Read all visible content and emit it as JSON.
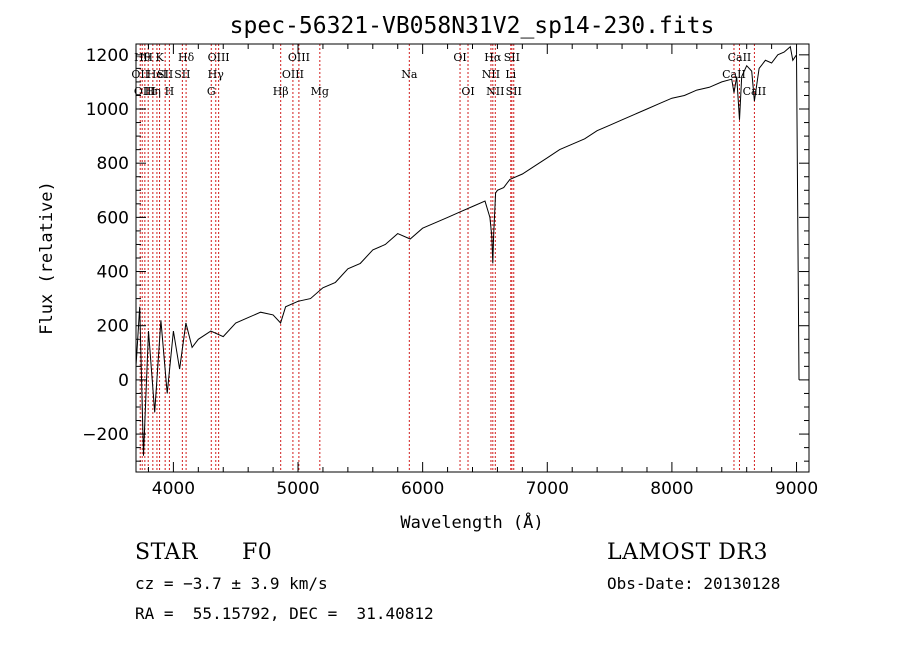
{
  "chart_data": {
    "type": "line",
    "title": "spec-56321-VB058N31V2_sp14-230.fits",
    "xlabel": "Wavelength (Å)",
    "ylabel": "Flux (relative)",
    "xlim": [
      3700,
      9100
    ],
    "ylim": [
      -340,
      1240
    ],
    "xticks": [
      4000,
      5000,
      6000,
      7000,
      8000,
      9000
    ],
    "yticks": [
      -200,
      0,
      200,
      400,
      600,
      800,
      1000,
      1200
    ],
    "grid": false,
    "series": [
      {
        "name": "spectrum",
        "x": [
          3700,
          3730,
          3760,
          3800,
          3850,
          3900,
          3950,
          4000,
          4050,
          4100,
          4150,
          4200,
          4300,
          4400,
          4500,
          4600,
          4700,
          4800,
          4860,
          4900,
          5000,
          5100,
          5200,
          5300,
          5400,
          5500,
          5600,
          5700,
          5800,
          5900,
          6000,
          6100,
          6200,
          6300,
          6400,
          6500,
          6540,
          6555,
          6563,
          6570,
          6585,
          6600,
          6650,
          6700,
          6800,
          6900,
          7000,
          7100,
          7200,
          7300,
          7400,
          7500,
          7600,
          7700,
          7800,
          7900,
          8000,
          8100,
          8200,
          8300,
          8400,
          8480,
          8498,
          8520,
          8542,
          8560,
          8600,
          8640,
          8662,
          8700,
          8750,
          8800,
          8850,
          8900,
          8950,
          8970,
          9000,
          9020
        ],
        "y": [
          50,
          270,
          -280,
          180,
          -120,
          220,
          -50,
          180,
          40,
          210,
          120,
          150,
          180,
          160,
          210,
          230,
          250,
          240,
          210,
          270,
          290,
          300,
          340,
          360,
          410,
          430,
          480,
          500,
          540,
          520,
          560,
          580,
          600,
          620,
          640,
          660,
          600,
          530,
          430,
          540,
          690,
          700,
          710,
          740,
          760,
          790,
          820,
          850,
          870,
          890,
          920,
          940,
          960,
          980,
          1000,
          1020,
          1040,
          1050,
          1070,
          1080,
          1100,
          1110,
          1060,
          1120,
          960,
          1120,
          1160,
          1140,
          1030,
          1150,
          1180,
          1170,
          1200,
          1210,
          1230,
          1180,
          1200,
          0
        ]
      }
    ],
    "lines": [
      {
        "x": 3734,
        "label": "OII",
        "row": 2
      },
      {
        "x": 3750,
        "label": "Hθ",
        "row": 1
      },
      {
        "x": 3771,
        "label": "OIII",
        "row": 3
      },
      {
        "x": 3798,
        "label": "H",
        "row": 1
      },
      {
        "x": 3835,
        "label": "Hη",
        "row": 3
      },
      {
        "x": 3868,
        "label": "HeI",
        "row": 2
      },
      {
        "x": 3889,
        "label": "K",
        "row": 1
      },
      {
        "x": 3934,
        "label": "SII",
        "row": 2
      },
      {
        "x": 3968,
        "label": "H",
        "row": 3
      },
      {
        "x": 4072,
        "label": "SII",
        "row": 2
      },
      {
        "x": 4102,
        "label": "Hδ",
        "row": 1
      },
      {
        "x": 4304,
        "label": "G",
        "row": 3
      },
      {
        "x": 4340,
        "label": "Hγ",
        "row": 2
      },
      {
        "x": 4363,
        "label": "OIII",
        "row": 1
      },
      {
        "x": 4861,
        "label": "Hβ",
        "row": 3
      },
      {
        "x": 4959,
        "label": "OIII",
        "row": 2
      },
      {
        "x": 5007,
        "label": "OIII",
        "row": 1
      },
      {
        "x": 5175,
        "label": "Mg",
        "row": 3
      },
      {
        "x": 5893,
        "label": "Na",
        "row": 2
      },
      {
        "x": 6300,
        "label": "OI",
        "row": 1
      },
      {
        "x": 6364,
        "label": "OI",
        "row": 3
      },
      {
        "x": 6548,
        "label": "NII",
        "row": 2
      },
      {
        "x": 6563,
        "label": "Hα",
        "row": 1
      },
      {
        "x": 6583,
        "label": "NII",
        "row": 3
      },
      {
        "x": 6707,
        "label": "Li",
        "row": 2
      },
      {
        "x": 6716,
        "label": "SII",
        "row": 1
      },
      {
        "x": 6731,
        "label": "SII",
        "row": 3
      },
      {
        "x": 8498,
        "label": "CaII",
        "row": 2
      },
      {
        "x": 8542,
        "label": "CaII",
        "row": 1
      },
      {
        "x": 8662,
        "label": "CaII",
        "row": 3
      }
    ]
  },
  "info": {
    "object_class": "STAR",
    "subclass": "F0",
    "survey": "LAMOST DR3",
    "redshift": "cz = −3.7 ± 3.9 km/s",
    "obs_date": "Obs-Date: 20130128",
    "coords": "RA =  55.15792, DEC =  31.40812"
  }
}
